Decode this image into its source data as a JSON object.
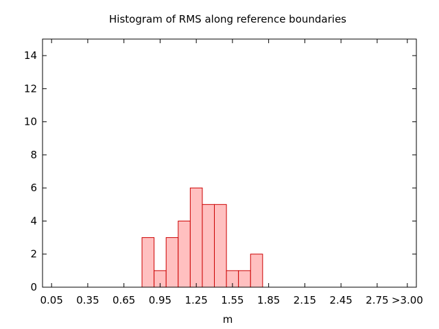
{
  "chart_data": {
    "type": "bar",
    "title": "Histogram of RMS along reference boundaries",
    "xlabel": "m",
    "ylabel": "",
    "x_tick_labels": [
      "0.05",
      "0.35",
      "0.65",
      "0.95",
      "1.25",
      "1.55",
      "1.85",
      "2.15",
      "2.45",
      "2.75",
      ">3.00"
    ],
    "x_tick_values": [
      0.05,
      0.35,
      0.65,
      0.95,
      1.25,
      1.55,
      1.85,
      2.15,
      2.45,
      2.75,
      3.0
    ],
    "xlim": [
      -0.025,
      3.075
    ],
    "ylim": [
      0,
      15
    ],
    "y_ticks": [
      0,
      2,
      4,
      6,
      8,
      10,
      12,
      14
    ],
    "bin_width": 0.1,
    "bin_starts": [
      0.8,
      0.9,
      1.0,
      1.1,
      1.2,
      1.3,
      1.4,
      1.5,
      1.6,
      1.7
    ],
    "values": [
      3,
      1,
      3,
      4,
      6,
      5,
      5,
      1,
      1,
      2
    ],
    "colors": {
      "fill": "#ffc0c0",
      "stroke": "#cc0000",
      "axis": "#000000"
    },
    "grid": false,
    "legend": "none"
  }
}
